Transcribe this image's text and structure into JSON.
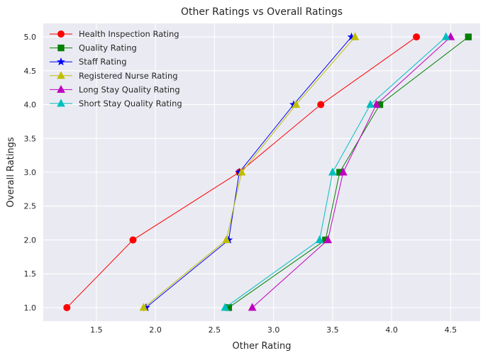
{
  "chart_data": {
    "type": "line",
    "title": "Other Ratings vs Overall Ratings",
    "xlabel": "Other Rating",
    "ylabel": "Overall Ratings",
    "xlim": [
      1.05,
      4.75
    ],
    "ylim": [
      0.8,
      5.2
    ],
    "xticks": [
      "1.5",
      "2.0",
      "2.5",
      "3.0",
      "3.5",
      "4.0",
      "4.5"
    ],
    "yticks": [
      "1.0",
      "1.5",
      "2.0",
      "2.5",
      "3.0",
      "3.5",
      "4.0",
      "4.5",
      "5.0"
    ],
    "grid": true,
    "legend_position": "top-left",
    "background": "#eaeaf2",
    "series": [
      {
        "name": "Health Inspection Rating",
        "color": "#ff0000",
        "marker": "circle",
        "x": [
          1.25,
          1.81,
          2.71,
          3.4,
          4.21
        ],
        "y": [
          1,
          2,
          3,
          4,
          5
        ]
      },
      {
        "name": "Quality Rating",
        "color": "#008000",
        "marker": "square",
        "x": [
          2.62,
          3.44,
          3.56,
          3.9,
          4.65
        ],
        "y": [
          1,
          2,
          3,
          4,
          5
        ]
      },
      {
        "name": "Staff Rating",
        "color": "#0000ff",
        "marker": "star",
        "x": [
          1.92,
          2.62,
          2.71,
          3.17,
          3.66
        ],
        "y": [
          1,
          2,
          3,
          4,
          5
        ]
      },
      {
        "name": "Registered Nurse Rating",
        "color": "#bfbf00",
        "marker": "triangle",
        "x": [
          1.9,
          2.6,
          2.73,
          3.19,
          3.69
        ],
        "y": [
          1,
          2,
          3,
          4,
          5
        ]
      },
      {
        "name": "Long Stay Quality Rating",
        "color": "#bf00bf",
        "marker": "triangle",
        "x": [
          2.82,
          3.46,
          3.59,
          3.87,
          4.5
        ],
        "y": [
          1,
          2,
          3,
          4,
          5
        ]
      },
      {
        "name": "Short Stay Quality Rating",
        "color": "#00bfbf",
        "marker": "triangle",
        "x": [
          2.59,
          3.39,
          3.5,
          3.82,
          4.46
        ],
        "y": [
          1,
          2,
          3,
          4,
          5
        ]
      }
    ]
  }
}
